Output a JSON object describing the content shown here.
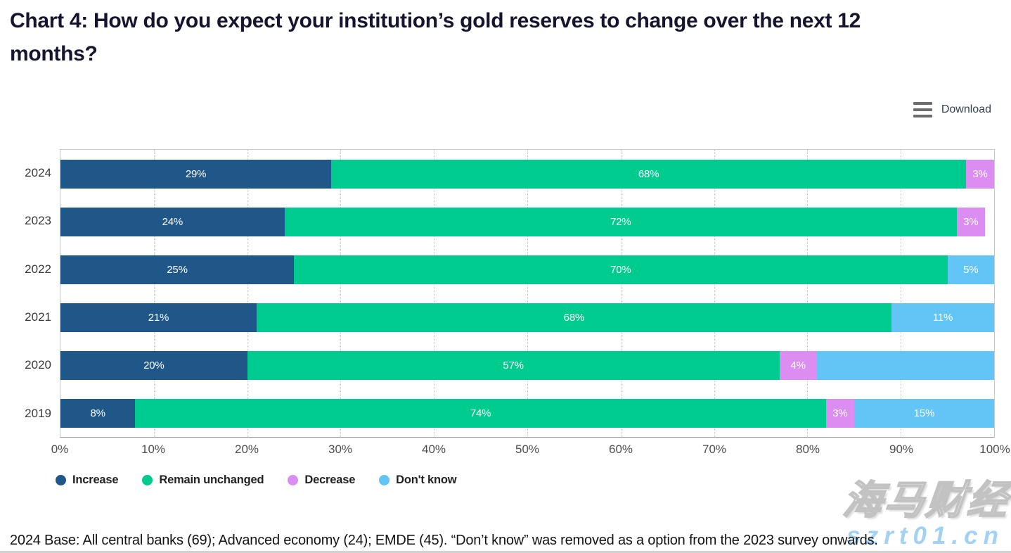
{
  "header": {
    "title": "Chart 4: How do you expect your institution’s gold reserves to change over the next 12 months?"
  },
  "toolbar": {
    "download_label": "Download",
    "menu_icon": "hamburger-icon",
    "icon_color": "#6d6d6d"
  },
  "chart_data": {
    "type": "bar",
    "orientation": "horizontal-stacked",
    "title": "Chart 4: How do you expect your institution’s gold reserves to change over the next 12 months?",
    "categories": [
      "2024",
      "2023",
      "2022",
      "2021",
      "2020",
      "2019"
    ],
    "series": [
      {
        "name": "Increase",
        "color": "#1F5788",
        "values": [
          29,
          24,
          25,
          21,
          20,
          8
        ]
      },
      {
        "name": "Remain unchanged",
        "color": "#00CB8E",
        "values": [
          68,
          72,
          70,
          68,
          57,
          74
        ]
      },
      {
        "name": "Decrease",
        "color": "#DB8DF2",
        "values": [
          3,
          3,
          0,
          0,
          4,
          3
        ]
      },
      {
        "name": "Don't know",
        "color": "#62C5F5",
        "values": [
          0,
          0,
          5,
          11,
          19,
          15
        ]
      }
    ],
    "data_labels": [
      [
        "29%",
        "68%",
        "3%",
        ""
      ],
      [
        "24%",
        "72%",
        "3%",
        ""
      ],
      [
        "25%",
        "70%",
        "",
        "5%"
      ],
      [
        "21%",
        "68%",
        "",
        "11%"
      ],
      [
        "20%",
        "57%",
        "4%",
        ""
      ],
      [
        "8%",
        "74%",
        "3%",
        "15%"
      ]
    ],
    "x_ticks": [
      "0%",
      "10%",
      "20%",
      "30%",
      "40%",
      "50%",
      "60%",
      "70%",
      "80%",
      "90%",
      "100%"
    ],
    "xlim": [
      0,
      100
    ],
    "xlabel": "",
    "ylabel": "",
    "grid": "vertical-dotted",
    "legend_position": "bottom"
  },
  "footer": {
    "text": "2024 Base: All central banks (69); Advanced economy (24); EMDE (45). “Don’t know” was removed as a option from the 2023 survey onwards."
  },
  "watermark": {
    "text_cn": "海马财经",
    "text_url": "szrt01.cn"
  }
}
